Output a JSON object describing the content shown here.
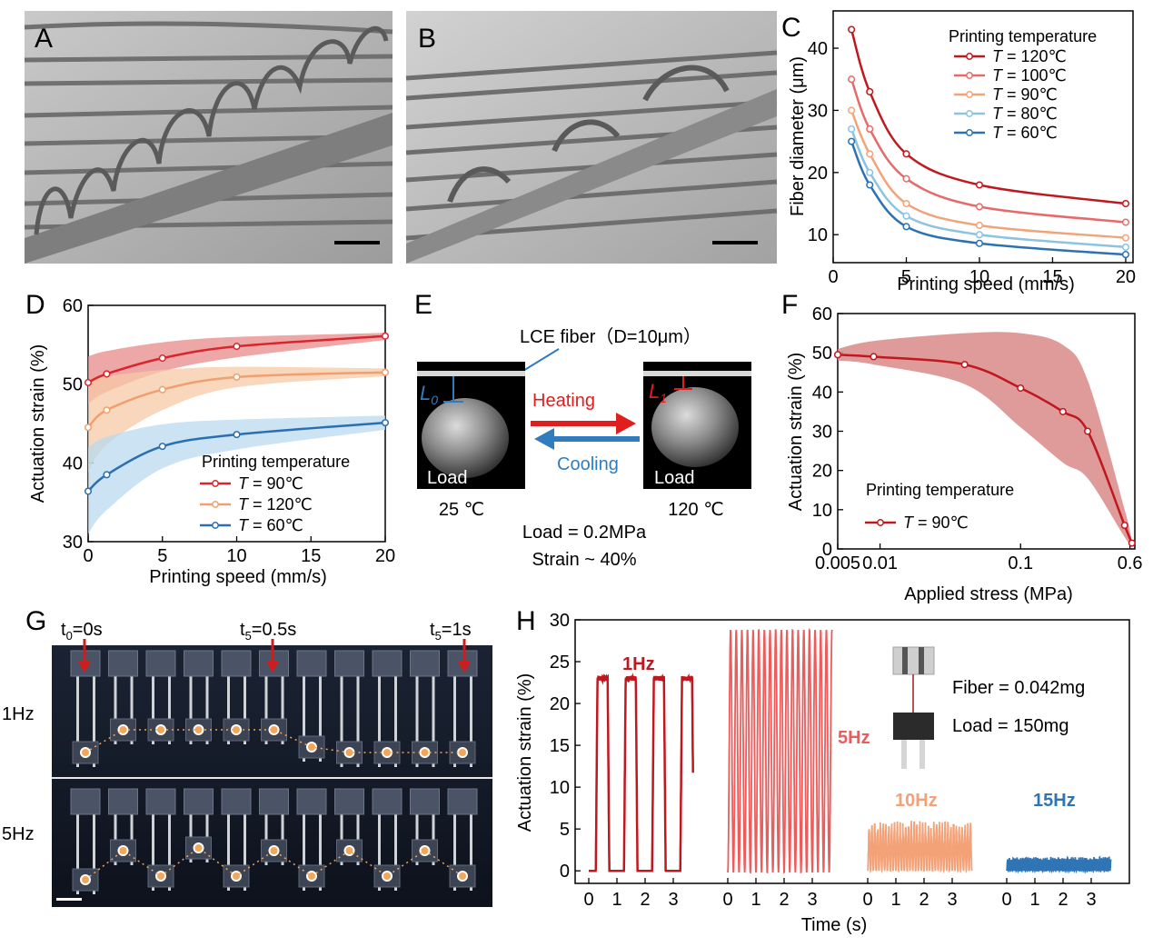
{
  "panels": {
    "A": {
      "label": "A"
    },
    "B": {
      "label": "B"
    },
    "C": {
      "label": "C"
    },
    "D": {
      "label": "D"
    },
    "E": {
      "label": "E"
    },
    "F": {
      "label": "F"
    },
    "G": {
      "label": "G"
    },
    "H": {
      "label": "H"
    }
  },
  "colors": {
    "red": "#c0181f",
    "pink": "#e76a6a",
    "peach": "#f0a47a",
    "lightblue": "#8cc3e0",
    "blue": "#2c72b1",
    "arrow_red": "#e01e1e",
    "arrow_blue": "#2f7dbf"
  },
  "chart_data": [
    {
      "panel": "C",
      "type": "line",
      "xlabel": "Printing speed (mm/s)",
      "ylabel": "Fiber diameter (μm)",
      "xlim": [
        0,
        20.5
      ],
      "ylim": [
        5.5,
        46
      ],
      "xticks": [
        "0",
        "5",
        "10",
        "15",
        "20"
      ],
      "yticks": [
        "10",
        "20",
        "30",
        "40"
      ],
      "legend_title": "Printing temperature",
      "legend_placement": "top-right",
      "x": [
        1.25,
        2.5,
        5,
        10,
        20
      ],
      "series": [
        {
          "name": "T = 120℃",
          "var": "T",
          "rest": " = 120℃",
          "color": "#c0181f",
          "values": [
            43,
            33,
            23,
            18,
            15
          ]
        },
        {
          "name": "T = 100℃",
          "var": "T",
          "rest": " = 100℃",
          "color": "#e76a6a",
          "values": [
            35,
            27,
            19,
            14.5,
            12
          ]
        },
        {
          "name": "T = 90℃",
          "var": "T",
          "rest": " = 90℃",
          "color": "#f0a47a",
          "values": [
            30,
            23,
            15,
            11.5,
            9.5
          ]
        },
        {
          "name": "T = 80℃",
          "var": "T",
          "rest": " = 80℃",
          "color": "#8cc3e0",
          "values": [
            27,
            20,
            13,
            10,
            8
          ]
        },
        {
          "name": "T = 60℃",
          "var": "T",
          "rest": " = 60℃",
          "color": "#2c72b1",
          "values": [
            25,
            18,
            11.3,
            8.6,
            6.8
          ]
        }
      ]
    },
    {
      "panel": "D",
      "type": "line",
      "xlabel": "Printing speed (mm/s)",
      "ylabel": "Actuation strain (%)",
      "xlim": [
        0,
        20
      ],
      "ylim": [
        30,
        60
      ],
      "xticks": [
        "0",
        "5",
        "10",
        "15",
        "20"
      ],
      "yticks": [
        "30",
        "40",
        "50",
        "60"
      ],
      "legend_title": "Printing temperature",
      "legend_placement": "bottom-right",
      "x": [
        0,
        1.25,
        5,
        10,
        20
      ],
      "series": [
        {
          "name": "T = 90℃",
          "var": "T",
          "rest": " = 90℃",
          "color": "#d9262e",
          "band": "#e78a88",
          "values": [
            50.2,
            51.3,
            53.3,
            54.8,
            56.1
          ],
          "band_upper": [
            53.5,
            54.2,
            55.3,
            56,
            56.5
          ],
          "band_lower": [
            47.5,
            49,
            51.6,
            53.4,
            55.6
          ]
        },
        {
          "name": "T = 120℃",
          "var": "T",
          "rest": " = 120℃",
          "color": "#f0a070",
          "band": "#f6c9a7",
          "values": [
            44.5,
            46.7,
            49.3,
            50.9,
            51.5
          ],
          "band_upper": [
            50.5,
            51,
            51.8,
            52.2,
            52
          ],
          "band_lower": [
            38.8,
            42.3,
            46.7,
            49.6,
            51
          ]
        },
        {
          "name": "T = 60℃",
          "var": "T",
          "rest": " = 60℃",
          "color": "#2a6fb0",
          "band": "#b9d9ef",
          "values": [
            36.4,
            38.5,
            42.1,
            43.6,
            45.1
          ],
          "band_upper": [
            42,
            43.3,
            44.9,
            45.5,
            46
          ],
          "band_lower": [
            31,
            34,
            39.3,
            41.7,
            44.2
          ]
        }
      ]
    },
    {
      "panel": "F",
      "type": "line",
      "xscale": "log",
      "xlabel": "Applied stress (MPa)",
      "ylabel": "Actuation strain (%)",
      "xlim": [
        0.005,
        0.65
      ],
      "ylim": [
        0,
        60
      ],
      "xticks": [
        "0.005",
        "0.01",
        "0.1",
        "0.6"
      ],
      "yticks": [
        "0",
        "10",
        "20",
        "30",
        "40",
        "50",
        "60"
      ],
      "legend_title": "Printing temperature",
      "legend_placement": "bottom-left",
      "series": [
        {
          "name": "T = 90℃",
          "var": "T",
          "rest": " = 90℃",
          "color": "#c0181f",
          "band": "#d98a88",
          "x": [
            0.005,
            0.009,
            0.04,
            0.1,
            0.2,
            0.3,
            0.55,
            0.62
          ],
          "values": [
            49.5,
            49,
            47,
            41,
            35,
            30,
            6,
            1.5
          ],
          "band_upper": [
            51,
            53,
            55,
            55,
            52,
            43,
            10,
            2
          ],
          "band_lower": [
            48,
            47,
            42,
            31,
            22,
            18,
            3,
            0.5
          ]
        }
      ]
    },
    {
      "panel": "H",
      "type": "line",
      "xlabel": "Time (s)",
      "ylabel": "Actuation strain (%)",
      "ylim": [
        -1.5,
        30
      ],
      "yticks": [
        "0",
        "5",
        "10",
        "15",
        "20",
        "25",
        "30"
      ],
      "segment_ticks": [
        "0",
        "1",
        "2",
        "3"
      ],
      "series": [
        {
          "name": "1Hz",
          "label": "1Hz",
          "color": "#c0181f",
          "frequency_hz": 1,
          "amplitude_percent": 23,
          "duration_s": 3.7
        },
        {
          "name": "5Hz",
          "label": "5Hz",
          "color": "#ee5b5b",
          "frequency_hz": 5,
          "amplitude_percent": 29,
          "duration_s": 3.7
        },
        {
          "name": "10Hz",
          "label": "10Hz",
          "color": "#f3a176",
          "frequency_hz": 10,
          "amplitude_percent": 5.5,
          "duration_s": 3.7
        },
        {
          "name": "15Hz",
          "label": "15Hz",
          "color": "#2f75b5",
          "frequency_hz": 15,
          "amplitude_percent": 1.5,
          "duration_s": 3.7
        }
      ]
    }
  ],
  "scale_bars": {
    "A": "scale-bar",
    "B": "scale-bar"
  },
  "panelE": {
    "fiber_label": "LCE fiber（D=10μm）",
    "L0": "L",
    "L0_sub": "0",
    "L1": "L",
    "L1_sub": "1",
    "heating": "Heating",
    "cooling": "Cooling",
    "load_left": "Load",
    "load_right": "Load",
    "temp_left": "25 ℃",
    "temp_right": "120 ℃",
    "load_text": "Load = 0.2MPa",
    "strain_text": "Strain ~ 40%"
  },
  "panelG": {
    "t0": "t",
    "t0_sub": "0",
    "t0_val": "=0s",
    "t5a": "t",
    "t5a_sub": "5",
    "t5a_val": "=0.5s",
    "t5b": "t",
    "t5b_sub": "5",
    "t5b_val": "=1s",
    "row1": "1Hz",
    "row2": "5Hz"
  },
  "panelH_inset": {
    "fiber": "Fiber = 0.042mg",
    "load": "Load = 150mg"
  }
}
